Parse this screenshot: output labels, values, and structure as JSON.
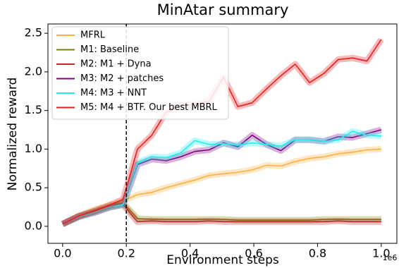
{
  "chart_data": {
    "type": "line",
    "title": "MinAtar summary",
    "x_label": "Environment steps",
    "y_label": "Normalized reward",
    "x_offset_label": "1e6",
    "x": [
      0,
      0.05,
      0.1,
      0.15,
      0.19,
      0.235,
      0.28,
      0.325,
      0.37,
      0.415,
      0.46,
      0.505,
      0.55,
      0.595,
      0.64,
      0.685,
      0.73,
      0.775,
      0.82,
      0.865,
      0.91,
      0.955,
      1.0
    ],
    "xlim": [
      -0.046,
      1.049
    ],
    "ylim": [
      -0.22,
      2.62
    ],
    "xticks": [
      {
        "value": 0,
        "label": "0.0"
      },
      {
        "value": 0.2,
        "label": "0.2"
      },
      {
        "value": 0.4,
        "label": "0.4"
      },
      {
        "value": 0.6,
        "label": "0.6"
      },
      {
        "value": 0.8,
        "label": "0.8"
      },
      {
        "value": 1,
        "label": "1.0"
      }
    ],
    "yticks": [
      {
        "value": 0,
        "label": "0.0"
      },
      {
        "value": 0.5,
        "label": "0.5"
      },
      {
        "value": 1,
        "label": "1.0"
      },
      {
        "value": 1.5,
        "label": "1.5"
      },
      {
        "value": 2,
        "label": "2.0"
      },
      {
        "value": 2.5,
        "label": "2.5"
      }
    ],
    "vline": 0.2,
    "legend": "upper left",
    "series": [
      {
        "name": "MFRL",
        "color": "#fbb040",
        "values": [
          0.03,
          0.13,
          0.22,
          0.27,
          0.33,
          0.41,
          0.44,
          0.5,
          0.55,
          0.6,
          0.66,
          0.68,
          0.7,
          0.73,
          0.79,
          0.78,
          0.84,
          0.88,
          0.9,
          0.94,
          0.96,
          0.99,
          1.0
        ]
      },
      {
        "name": "M1: Baseline",
        "color": "#808000",
        "values": [
          0.03,
          0.13,
          0.2,
          0.27,
          0.3,
          0.1,
          0.09,
          0.09,
          0.09,
          0.09,
          0.09,
          0.09,
          0.08,
          0.08,
          0.08,
          0.08,
          0.08,
          0.08,
          0.09,
          0.09,
          0.09,
          0.09,
          0.09
        ]
      },
      {
        "name": "M2: M1 + Dyna",
        "color": "#c0282d",
        "values": [
          0.03,
          0.13,
          0.18,
          0.25,
          0.28,
          0.06,
          0.07,
          0.06,
          0.06,
          0.06,
          0.07,
          0.06,
          0.06,
          0.06,
          0.06,
          0.06,
          0.06,
          0.06,
          0.06,
          0.07,
          0.06,
          0.06,
          0.06
        ]
      },
      {
        "name": "M3: M2 + patches",
        "color": "#800080",
        "values": [
          0.03,
          0.12,
          0.18,
          0.25,
          0.28,
          0.8,
          0.87,
          0.85,
          0.9,
          0.97,
          0.99,
          1.08,
          1.03,
          1.18,
          1.06,
          0.98,
          1.12,
          1.12,
          1.1,
          1.16,
          1.15,
          1.2,
          1.25
        ]
      },
      {
        "name": "M4: M3 + NNT",
        "color": "#22eeee",
        "values": [
          0.03,
          0.12,
          0.18,
          0.25,
          0.28,
          0.82,
          0.9,
          0.89,
          0.95,
          1.11,
          1.06,
          1.07,
          1.05,
          1.08,
          1.06,
          1.04,
          1.12,
          1.12,
          1.1,
          1.12,
          1.23,
          1.18,
          1.17
        ]
      },
      {
        "name": "M5: M4 + BTF. Our best MBRL",
        "color": "#ee1c1c",
        "values": [
          0.03,
          0.13,
          0.2,
          0.28,
          0.35,
          1.0,
          1.18,
          1.48,
          1.56,
          1.58,
          1.62,
          1.93,
          1.55,
          1.6,
          1.78,
          1.95,
          2.1,
          1.86,
          1.98,
          2.16,
          2.18,
          2.14,
          2.42
        ]
      }
    ]
  }
}
